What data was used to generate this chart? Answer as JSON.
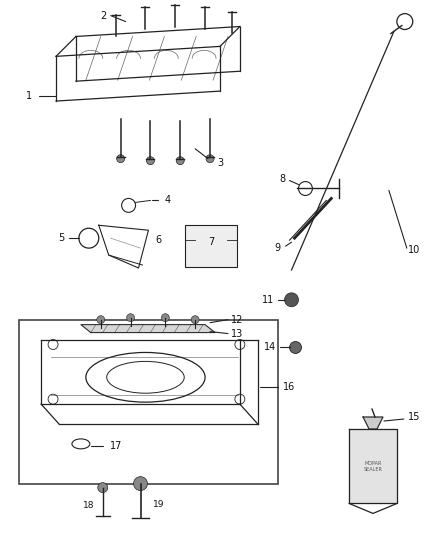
{
  "bg_color": "#ffffff",
  "line_color": "#222222",
  "label_color": "#111111",
  "figsize": [
    4.38,
    5.33
  ],
  "dpi": 100
}
